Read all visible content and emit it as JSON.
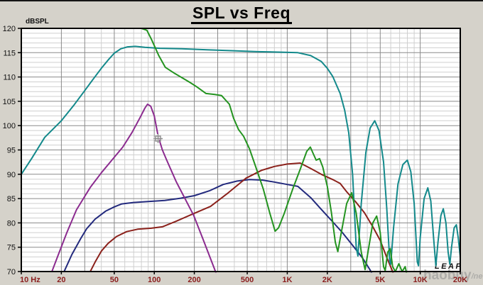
{
  "window": {
    "app": "LEAP SPL plot"
  },
  "overlay": {
    "logo_text": "LEAP",
    "watermark_text": "haobuy",
    "watermark_suffix": "/net",
    "cursor_icon": "move-cursor-icon"
  },
  "colors": {
    "background": "#d5d2ca",
    "plot_background": "#ffffff",
    "frame": "#000000",
    "grid_major": "#8a8a8a",
    "grid_minor": "#cfcfcf",
    "y_label_color": "#111111",
    "x_label_color": "#8b1e1e",
    "logo_color": "#111111",
    "watermark_color": "#8f8f8f"
  },
  "chart_data": {
    "type": "line",
    "title": "SPL vs Freq",
    "ylabel": "dBSPL",
    "x_scale": "log",
    "xlim": [
      10,
      20000
    ],
    "ylim": [
      70,
      120
    ],
    "grid": "on",
    "legend": "none",
    "y_ticks": [
      120,
      115,
      110,
      105,
      100,
      95,
      90,
      85,
      80,
      75,
      70
    ],
    "x_ticks": [
      {
        "f": 10,
        "label": "10 Hz"
      },
      {
        "f": 20,
        "label": "20"
      },
      {
        "f": 50,
        "label": "50"
      },
      {
        "f": 100,
        "label": "100"
      },
      {
        "f": 200,
        "label": "200"
      },
      {
        "f": 500,
        "label": "500"
      },
      {
        "f": 1000,
        "label": "1K"
      },
      {
        "f": 2000,
        "label": "2K"
      },
      {
        "f": 5000,
        "label": "5K"
      },
      {
        "f": 10000,
        "label": "10K"
      },
      {
        "f": 20000,
        "label": "20K"
      }
    ],
    "grid_dark_multiples": [
      1,
      2,
      3,
      5
    ],
    "series": [
      {
        "name": "navy-curve",
        "color": "#232a7d",
        "points": [
          [
            21,
            70
          ],
          [
            24,
            73.5
          ],
          [
            28,
            76.8
          ],
          [
            31,
            78.8
          ],
          [
            36,
            80.8
          ],
          [
            43,
            82.4
          ],
          [
            50,
            83.3
          ],
          [
            57,
            83.9
          ],
          [
            70,
            84.2
          ],
          [
            90,
            84.4
          ],
          [
            120,
            84.6
          ],
          [
            160,
            85.1
          ],
          [
            200,
            85.6
          ],
          [
            260,
            86.6
          ],
          [
            330,
            87.9
          ],
          [
            420,
            88.6
          ],
          [
            520,
            88.9
          ],
          [
            650,
            88.8
          ],
          [
            800,
            88.4
          ],
          [
            1000,
            87.9
          ],
          [
            1200,
            87.5
          ],
          [
            1500,
            85.2
          ],
          [
            1800,
            82.8
          ],
          [
            2200,
            80.2
          ],
          [
            2600,
            78
          ],
          [
            3100,
            75.4
          ],
          [
            3700,
            72.7
          ],
          [
            4200,
            70.3
          ],
          [
            4400,
            69.3
          ]
        ]
      },
      {
        "name": "maroon-curve",
        "color": "#8b211b",
        "points": [
          [
            33,
            70
          ],
          [
            36,
            72
          ],
          [
            40,
            74.2
          ],
          [
            45,
            75.8
          ],
          [
            52,
            77.2
          ],
          [
            62,
            78.2
          ],
          [
            75,
            78.7
          ],
          [
            95,
            78.9
          ],
          [
            115,
            79.2
          ],
          [
            145,
            80.3
          ],
          [
            190,
            81.7
          ],
          [
            265,
            83.4
          ],
          [
            360,
            86.2
          ],
          [
            490,
            89.2
          ],
          [
            640,
            90.8
          ],
          [
            800,
            91.6
          ],
          [
            1000,
            92.1
          ],
          [
            1250,
            92.3
          ],
          [
            1500,
            91.2
          ],
          [
            1800,
            90
          ],
          [
            2200,
            88.9
          ],
          [
            2500,
            88.1
          ],
          [
            2800,
            86.4
          ],
          [
            3300,
            84.2
          ],
          [
            3800,
            82.1
          ],
          [
            4400,
            79.2
          ],
          [
            5000,
            76.4
          ],
          [
            5600,
            72.9
          ],
          [
            6200,
            70
          ],
          [
            6400,
            68.9
          ]
        ]
      },
      {
        "name": "purple-curve",
        "color": "#8b2b8f",
        "points": [
          [
            17,
            70
          ],
          [
            19,
            73.5
          ],
          [
            22,
            78
          ],
          [
            26,
            82.7
          ],
          [
            33,
            87.3
          ],
          [
            40,
            90.3
          ],
          [
            48,
            92.9
          ],
          [
            58,
            95.6
          ],
          [
            68,
            98.6
          ],
          [
            78,
            101.6
          ],
          [
            85,
            103.6
          ],
          [
            89,
            104.4
          ],
          [
            94,
            104
          ],
          [
            100,
            102
          ],
          [
            107,
            97.8
          ],
          [
            115,
            95
          ],
          [
            124,
            92.9
          ],
          [
            146,
            88.5
          ],
          [
            170,
            85
          ],
          [
            198,
            81.5
          ],
          [
            230,
            77
          ],
          [
            283,
            70.6
          ],
          [
            295,
            69.3
          ]
        ]
      },
      {
        "name": "teal-curve",
        "color": "#13898b",
        "points": [
          [
            10,
            90
          ],
          [
            12,
            93.3
          ],
          [
            15,
            97.6
          ],
          [
            20,
            101
          ],
          [
            25,
            104.3
          ],
          [
            30,
            107.2
          ],
          [
            35,
            109.7
          ],
          [
            40,
            111.8
          ],
          [
            45,
            113.5
          ],
          [
            50,
            114.9
          ],
          [
            56,
            115.8
          ],
          [
            63,
            116.2
          ],
          [
            72,
            116.3
          ],
          [
            85,
            116.1
          ],
          [
            110,
            115.9
          ],
          [
            160,
            115.8
          ],
          [
            250,
            115.6
          ],
          [
            400,
            115.4
          ],
          [
            600,
            115.2
          ],
          [
            900,
            115.1
          ],
          [
            1200,
            115
          ],
          [
            1500,
            114.4
          ],
          [
            1800,
            113.2
          ],
          [
            2000,
            111.8
          ],
          [
            2200,
            110.1
          ],
          [
            2500,
            106.6
          ],
          [
            2700,
            103.2
          ],
          [
            2900,
            98.5
          ],
          [
            3100,
            90
          ],
          [
            3300,
            75
          ],
          [
            3400,
            73.2
          ],
          [
            3600,
            84
          ],
          [
            3900,
            94.5
          ],
          [
            4200,
            99.5
          ],
          [
            4550,
            101
          ],
          [
            4900,
            99
          ],
          [
            5300,
            92.5
          ],
          [
            5600,
            83
          ],
          [
            5900,
            72
          ],
          [
            6000,
            71.5
          ],
          [
            6300,
            79
          ],
          [
            6800,
            88
          ],
          [
            7400,
            92
          ],
          [
            8000,
            92.9
          ],
          [
            8500,
            90.5
          ],
          [
            9000,
            84
          ],
          [
            9500,
            72
          ],
          [
            9700,
            71.2
          ],
          [
            10000,
            77
          ],
          [
            10700,
            85
          ],
          [
            11400,
            87.2
          ],
          [
            12000,
            84.5
          ],
          [
            12600,
            77
          ],
          [
            13100,
            71.2
          ],
          [
            13600,
            76
          ],
          [
            14300,
            81.5
          ],
          [
            14900,
            82.9
          ],
          [
            15600,
            80
          ],
          [
            16200,
            74
          ],
          [
            16700,
            71.5
          ],
          [
            17200,
            75
          ],
          [
            18000,
            79
          ],
          [
            18700,
            79.6
          ],
          [
            19300,
            77
          ],
          [
            20000,
            73
          ]
        ]
      },
      {
        "name": "green-curve",
        "color": "#23931f",
        "points": [
          [
            10,
            120
          ],
          [
            80,
            120
          ],
          [
            88,
            119.6
          ],
          [
            95,
            117.8
          ],
          [
            101,
            116.2
          ],
          [
            108,
            114.4
          ],
          [
            121,
            112
          ],
          [
            143,
            110.7
          ],
          [
            163,
            109.8
          ],
          [
            185,
            108.9
          ],
          [
            208,
            108
          ],
          [
            245,
            106.6
          ],
          [
            285,
            106.4
          ],
          [
            320,
            106.2
          ],
          [
            367,
            104.4
          ],
          [
            395,
            101.5
          ],
          [
            430,
            99.2
          ],
          [
            470,
            97.8
          ],
          [
            520,
            95.2
          ],
          [
            580,
            91.5
          ],
          [
            660,
            87
          ],
          [
            740,
            82
          ],
          [
            810,
            78.3
          ],
          [
            860,
            79
          ],
          [
            950,
            82
          ],
          [
            1100,
            87
          ],
          [
            1250,
            91
          ],
          [
            1400,
            94.7
          ],
          [
            1490,
            95.6
          ],
          [
            1570,
            94.2
          ],
          [
            1650,
            92.9
          ],
          [
            1750,
            93.2
          ],
          [
            1850,
            91.5
          ],
          [
            2000,
            87.5
          ],
          [
            2150,
            82
          ],
          [
            2300,
            76
          ],
          [
            2400,
            74.1
          ],
          [
            2550,
            78
          ],
          [
            2800,
            84
          ],
          [
            3050,
            86.2
          ],
          [
            3300,
            82
          ],
          [
            3600,
            74
          ],
          [
            3850,
            70.4
          ],
          [
            4100,
            75
          ],
          [
            4400,
            80
          ],
          [
            4700,
            81.4
          ],
          [
            5000,
            78
          ],
          [
            5300,
            71
          ],
          [
            5450,
            70.2
          ],
          [
            5700,
            74
          ],
          [
            5950,
            74.7
          ],
          [
            6200,
            71
          ],
          [
            6500,
            70
          ],
          [
            6900,
            71.6
          ],
          [
            7300,
            70
          ],
          [
            7700,
            71
          ],
          [
            8000,
            69
          ]
        ]
      }
    ]
  }
}
